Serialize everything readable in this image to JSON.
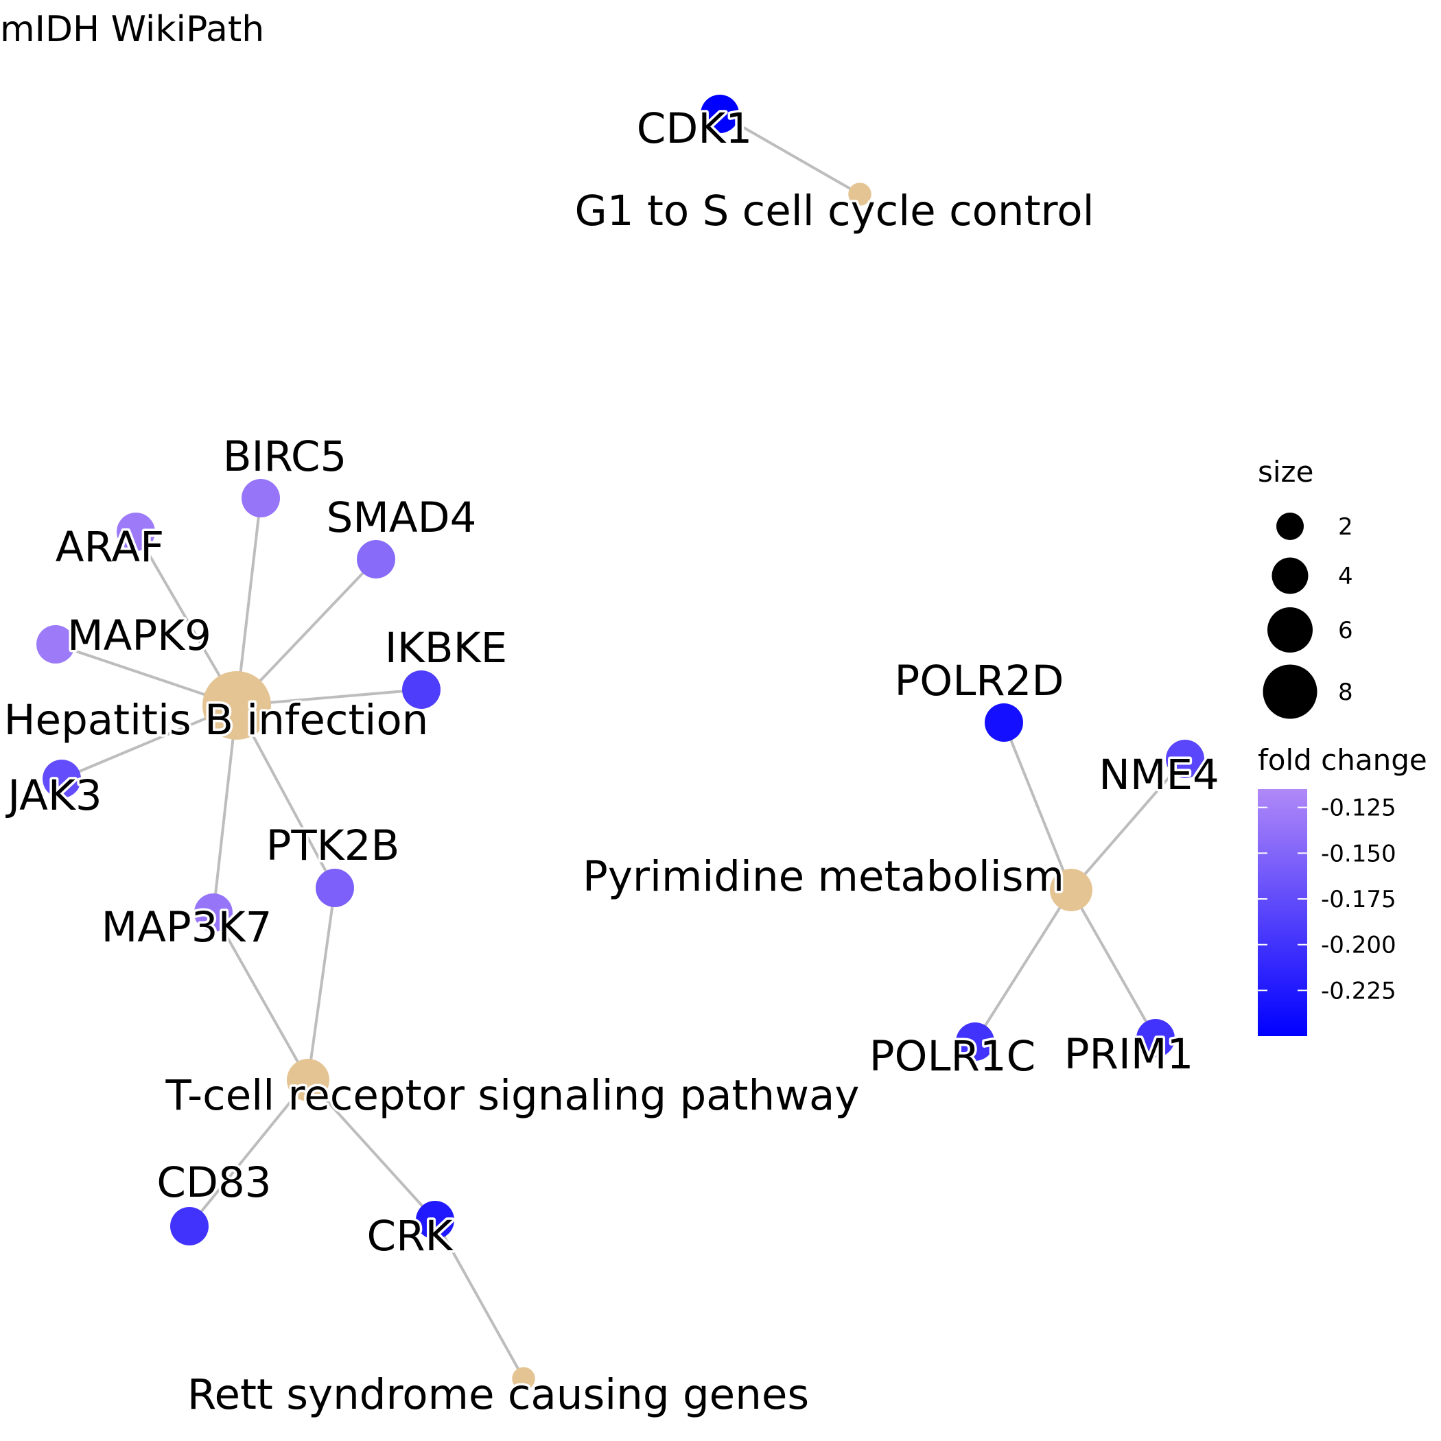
{
  "title": "mIDH  WikiPath",
  "colors": {
    "pathway_node": "#E5C494",
    "edge": "#BDBDBD",
    "fold_change_high": "#B089F7",
    "fold_change_low": "#0000FF"
  },
  "pathways": [
    {
      "id": "g1s",
      "label": "G1 to S cell cycle control",
      "size": 1
    },
    {
      "id": "hepb",
      "label": "Hepatitis B infection",
      "size": 8
    },
    {
      "id": "pyr",
      "label": "Pyrimidine metabolism",
      "size": 4
    },
    {
      "id": "tcr",
      "label": "T-cell receptor signaling pathway",
      "size": 4
    },
    {
      "id": "rett",
      "label": "Rett syndrome causing genes",
      "size": 1
    }
  ],
  "genes": [
    {
      "id": "CDK1",
      "label": "CDK1",
      "fold_change": -0.25
    },
    {
      "id": "BIRC5",
      "label": "BIRC5",
      "fold_change": -0.135
    },
    {
      "id": "ARAF",
      "label": "ARAF",
      "fold_change": -0.13
    },
    {
      "id": "SMAD4",
      "label": "SMAD4",
      "fold_change": -0.145
    },
    {
      "id": "MAPK9",
      "label": "MAPK9",
      "fold_change": -0.13
    },
    {
      "id": "IKBKE",
      "label": "IKBKE",
      "fold_change": -0.19
    },
    {
      "id": "JAK3",
      "label": "JAK3",
      "fold_change": -0.175
    },
    {
      "id": "PTK2B",
      "label": "PTK2B",
      "fold_change": -0.155
    },
    {
      "id": "MAP3K7",
      "label": "MAP3K7",
      "fold_change": -0.135
    },
    {
      "id": "CD83",
      "label": "CD83",
      "fold_change": -0.2
    },
    {
      "id": "CRK",
      "label": "CRK",
      "fold_change": -0.225
    },
    {
      "id": "POLR2D",
      "label": "POLR2D",
      "fold_change": -0.235
    },
    {
      "id": "NME4",
      "label": "NME4",
      "fold_change": -0.18
    },
    {
      "id": "POLR1C",
      "label": "POLR1C",
      "fold_change": -0.2
    },
    {
      "id": "PRIM1",
      "label": "PRIM1",
      "fold_change": -0.2
    }
  ],
  "edges": [
    [
      "CDK1",
      "g1s"
    ],
    [
      "BIRC5",
      "hepb"
    ],
    [
      "ARAF",
      "hepb"
    ],
    [
      "SMAD4",
      "hepb"
    ],
    [
      "MAPK9",
      "hepb"
    ],
    [
      "IKBKE",
      "hepb"
    ],
    [
      "JAK3",
      "hepb"
    ],
    [
      "PTK2B",
      "hepb"
    ],
    [
      "MAP3K7",
      "hepb"
    ],
    [
      "PTK2B",
      "tcr"
    ],
    [
      "MAP3K7",
      "tcr"
    ],
    [
      "CD83",
      "tcr"
    ],
    [
      "CRK",
      "tcr"
    ],
    [
      "CRK",
      "rett"
    ],
    [
      "POLR2D",
      "pyr"
    ],
    [
      "NME4",
      "pyr"
    ],
    [
      "POLR1C",
      "pyr"
    ],
    [
      "PRIM1",
      "pyr"
    ]
  ],
  "legend": {
    "size_title": "size",
    "size_values": [
      2,
      4,
      6,
      8
    ],
    "color_title": "fold change",
    "color_ticks": [
      "-0.125",
      "-0.150",
      "-0.175",
      "-0.200",
      "-0.225"
    ]
  }
}
